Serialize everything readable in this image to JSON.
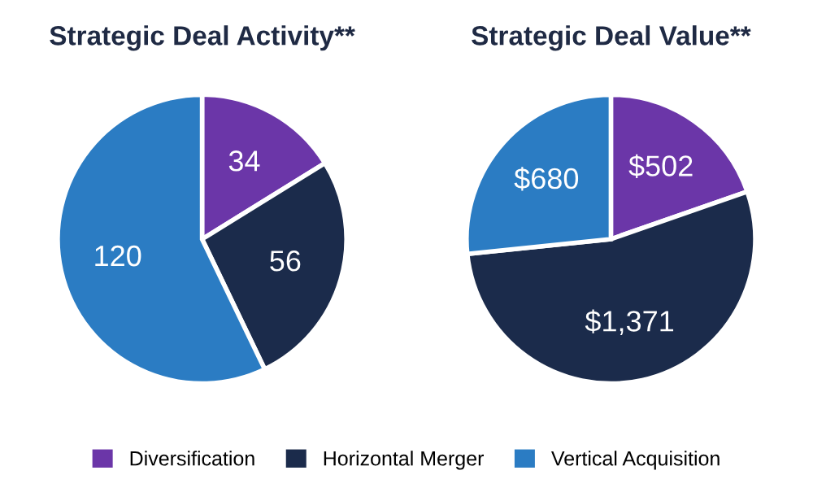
{
  "chart_data": [
    {
      "type": "pie",
      "title": "Strategic Deal Activity**",
      "categories": [
        "Diversification",
        "Horizontal Merger",
        "Vertical Acquisition"
      ],
      "values": [
        34,
        56,
        120
      ],
      "colors": [
        "#6b36a8",
        "#1b2b4b",
        "#2b7cc3"
      ],
      "value_labels": [
        "34",
        "56",
        "120"
      ],
      "legend": "bottom"
    },
    {
      "type": "pie",
      "title": "Strategic Deal Value**",
      "values": [
        502,
        1371,
        680
      ],
      "colors": [
        "#6b36a8",
        "#1b2b4b",
        "#2b7cc3"
      ],
      "value_labels": [
        "$502",
        "$1,371",
        "$680"
      ]
    }
  ]
}
